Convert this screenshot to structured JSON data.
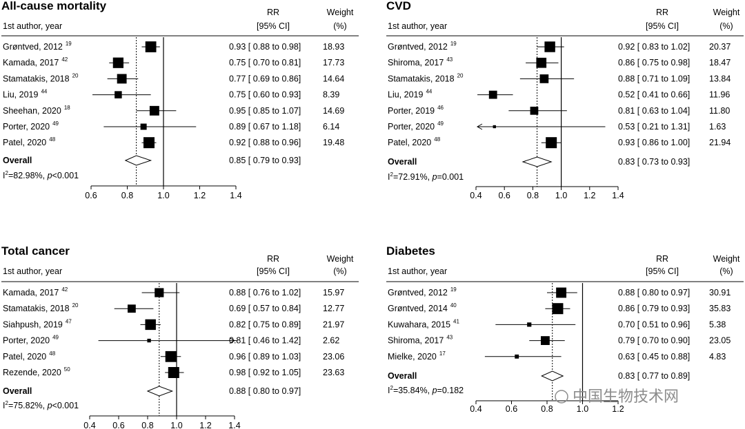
{
  "chart_data": [
    {
      "type": "forest",
      "title": "All-cause mortality",
      "header": {
        "author": "1st author, year",
        "rr": "RR",
        "ci": "[95% CI]",
        "weight": "Weight",
        "pct": "(%)"
      },
      "studies": [
        {
          "author": "Grøntved, 2012",
          "ref": "19",
          "rr": 0.93,
          "lo": 0.88,
          "hi": 0.98,
          "rr_text": "0.93 [ 0.88  to  0.98]",
          "weight": "18.93",
          "w": 18.93
        },
        {
          "author": "Kamada, 2017",
          "ref": "42",
          "rr": 0.75,
          "lo": 0.7,
          "hi": 0.81,
          "rr_text": "0.75 [ 0.70  to  0.81]",
          "weight": "17.73",
          "w": 17.73
        },
        {
          "author": "Stamatakis, 2018",
          "ref": "20",
          "rr": 0.77,
          "lo": 0.69,
          "hi": 0.86,
          "rr_text": "0.77 [ 0.69  to  0.86]",
          "weight": "14.64",
          "w": 14.64
        },
        {
          "author": "Liu, 2019",
          "ref": "44",
          "rr": 0.75,
          "lo": 0.6,
          "hi": 0.93,
          "rr_text": "0.75 [ 0.60  to  0.93]",
          "weight": "8.39",
          "w": 8.39
        },
        {
          "author": "Sheehan, 2020",
          "ref": "18",
          "rr": 0.95,
          "lo": 0.85,
          "hi": 1.07,
          "rr_text": "0.95 [ 0.85  to  1.07]",
          "weight": "14.69",
          "w": 14.69
        },
        {
          "author": "Porter, 2020",
          "ref": "49",
          "rr": 0.89,
          "lo": 0.67,
          "hi": 1.18,
          "rr_text": "0.89 [ 0.67  to  1.18]",
          "weight": "6.14",
          "w": 6.14
        },
        {
          "author": "Patel, 2020",
          "ref": "48",
          "rr": 0.92,
          "lo": 0.88,
          "hi": 0.96,
          "rr_text": "0.92 [ 0.88  to  0.96]",
          "weight": "19.48",
          "w": 19.48
        }
      ],
      "overall": {
        "label": "Overall",
        "rr": 0.85,
        "lo": 0.79,
        "hi": 0.93,
        "rr_text": "0.85 [ 0.79  to  0.93]"
      },
      "heterogeneity": {
        "i2": "=82.98%, ",
        "p": "p",
        "ptext": "<0.001"
      },
      "xticks": [
        0.6,
        0.8,
        1.0,
        1.2,
        1.4
      ],
      "xtick_labels": [
        "0.6",
        "0.8",
        "1.0",
        "1.2",
        "1.4"
      ],
      "xlim": [
        0.6,
        1.4
      ]
    },
    {
      "type": "forest",
      "title": "CVD",
      "header": {
        "author": "1st author, year",
        "rr": "RR",
        "ci": "[95% CI]",
        "weight": "Weight",
        "pct": "(%)"
      },
      "studies": [
        {
          "author": "Grøntved, 2012",
          "ref": "19",
          "rr": 0.92,
          "lo": 0.83,
          "hi": 1.02,
          "rr_text": "0.92 [ 0.83  to  1.02]",
          "weight": "20.37",
          "w": 20.37
        },
        {
          "author": "Shiroma, 2017",
          "ref": "43",
          "rr": 0.86,
          "lo": 0.75,
          "hi": 0.98,
          "rr_text": "0.86 [ 0.75  to  0.98]",
          "weight": "18.47",
          "w": 18.47
        },
        {
          "author": "Stamatakis, 2018",
          "ref": "20",
          "rr": 0.88,
          "lo": 0.71,
          "hi": 1.09,
          "rr_text": "0.88 [ 0.71  to  1.09]",
          "weight": "13.84",
          "w": 13.84
        },
        {
          "author": "Liu, 2019",
          "ref": "44",
          "rr": 0.52,
          "lo": 0.41,
          "hi": 0.66,
          "rr_text": "0.52 [ 0.41  to  0.66]",
          "weight": "11.96",
          "w": 11.96
        },
        {
          "author": "Porter, 2019",
          "ref": "46",
          "rr": 0.81,
          "lo": 0.63,
          "hi": 1.04,
          "rr_text": "0.81 [ 0.63  to  1.04]",
          "weight": "11.80",
          "w": 11.8
        },
        {
          "author": "Porter, 2020",
          "ref": "49",
          "rr": 0.53,
          "lo": 0.21,
          "hi": 1.31,
          "rr_text": "0.53 [ 0.21  to  1.31]",
          "weight": "1.63",
          "w": 1.63
        },
        {
          "author": "Patel, 2020",
          "ref": "48",
          "rr": 0.93,
          "lo": 0.86,
          "hi": 1.0,
          "rr_text": "0.93 [ 0.86  to  1.00]",
          "weight": "21.94",
          "w": 21.94
        }
      ],
      "overall": {
        "label": "Overall",
        "rr": 0.83,
        "lo": 0.73,
        "hi": 0.93,
        "rr_text": "0.83 [ 0.73  to  0.93]"
      },
      "heterogeneity": {
        "i2": "=72.91%, ",
        "p": "p",
        "ptext": "=0.001"
      },
      "xticks": [
        0.4,
        0.6,
        0.8,
        1.0,
        1.2,
        1.4
      ],
      "xtick_labels": [
        "0.4",
        "0.6",
        "0.8",
        "1.0",
        "1.2",
        "1.4"
      ],
      "xlim": [
        0.4,
        1.4
      ]
    },
    {
      "type": "forest",
      "title": "Total cancer",
      "header": {
        "author": "1st author, year",
        "rr": "RR",
        "ci": "[95% CI]",
        "weight": "Weight",
        "pct": "(%)"
      },
      "studies": [
        {
          "author": "Kamada, 2017",
          "ref": "42",
          "rr": 0.88,
          "lo": 0.76,
          "hi": 1.02,
          "rr_text": "0.88 [ 0.76  to  1.02]",
          "weight": "15.97",
          "w": 15.97
        },
        {
          "author": "Stamatakis, 2018",
          "ref": "20",
          "rr": 0.69,
          "lo": 0.57,
          "hi": 0.84,
          "rr_text": "0.69 [ 0.57  to  0.84]",
          "weight": "12.77",
          "w": 12.77
        },
        {
          "author": "Siahpush, 2019",
          "ref": "47",
          "rr": 0.82,
          "lo": 0.75,
          "hi": 0.89,
          "rr_text": "0.82 [ 0.75  to  0.89]",
          "weight": "21.97",
          "w": 21.97
        },
        {
          "author": "Porter, 2020",
          "ref": "49",
          "rr": 0.81,
          "lo": 0.46,
          "hi": 1.42,
          "rr_text": "0.81 [ 0.46  to  1.42]",
          "weight": "2.62",
          "w": 2.62
        },
        {
          "author": "Patel, 2020",
          "ref": "48",
          "rr": 0.96,
          "lo": 0.89,
          "hi": 1.03,
          "rr_text": "0.96 [ 0.89  to  1.03]",
          "weight": "23.06",
          "w": 23.06
        },
        {
          "author": "Rezende, 2020",
          "ref": "50",
          "rr": 0.98,
          "lo": 0.92,
          "hi": 1.05,
          "rr_text": "0.98 [ 0.92  to  1.05]",
          "weight": "23.63",
          "w": 23.63
        }
      ],
      "overall": {
        "label": "Overall",
        "rr": 0.88,
        "lo": 0.8,
        "hi": 0.97,
        "rr_text": "0.88 [ 0.80  to  0.97]"
      },
      "heterogeneity": {
        "i2": "=75.82%, ",
        "p": "p",
        "ptext": "<0.001"
      },
      "xticks": [
        0.4,
        0.6,
        0.8,
        1.0,
        1.2,
        1.4
      ],
      "xtick_labels": [
        "0.4",
        "0.6",
        "0.8",
        "1.0",
        "1.2",
        "1.4"
      ],
      "xlim": [
        0.4,
        1.4
      ]
    },
    {
      "type": "forest",
      "title": "Diabetes",
      "header": {
        "author": "1st author, year",
        "rr": "RR",
        "ci": "[95% CI]",
        "weight": "Weight",
        "pct": "(%)"
      },
      "studies": [
        {
          "author": "Grøntved, 2012",
          "ref": "19",
          "rr": 0.88,
          "lo": 0.8,
          "hi": 0.97,
          "rr_text": "0.88 [ 0.80  to  0.97]",
          "weight": "30.91",
          "w": 30.91
        },
        {
          "author": "Grøntved, 2014",
          "ref": "40",
          "rr": 0.86,
          "lo": 0.79,
          "hi": 0.93,
          "rr_text": "0.86 [ 0.79  to  0.93]",
          "weight": "35.83",
          "w": 35.83
        },
        {
          "author": "Kuwahara, 2015",
          "ref": "41",
          "rr": 0.7,
          "lo": 0.51,
          "hi": 0.96,
          "rr_text": "0.70 [ 0.51  to  0.96]",
          "weight": "5.38",
          "w": 5.38
        },
        {
          "author": "Shiroma, 2017",
          "ref": "43",
          "rr": 0.79,
          "lo": 0.7,
          "hi": 0.9,
          "rr_text": "0.79 [ 0.70  to  0.90]",
          "weight": "23.05",
          "w": 23.05
        },
        {
          "author": "Mielke, 2020",
          "ref": "17",
          "rr": 0.63,
          "lo": 0.45,
          "hi": 0.88,
          "rr_text": "0.63 [ 0.45  to  0.88]",
          "weight": "4.83",
          "w": 4.83
        }
      ],
      "overall": {
        "label": "Overall",
        "rr": 0.83,
        "lo": 0.77,
        "hi": 0.89,
        "rr_text": "0.83 [ 0.77  to  0.89]"
      },
      "heterogeneity": {
        "i2": "=35.84%, ",
        "p": "p",
        "ptext": "=0.182"
      },
      "xticks": [
        0.4,
        0.6,
        0.8,
        1.0,
        1.2
      ],
      "xtick_labels": [
        "0.4",
        "0.6",
        "0.8",
        "1.0",
        "1.2"
      ],
      "xlim": [
        0.4,
        1.2
      ]
    }
  ],
  "watermark": "中国生物技术网"
}
